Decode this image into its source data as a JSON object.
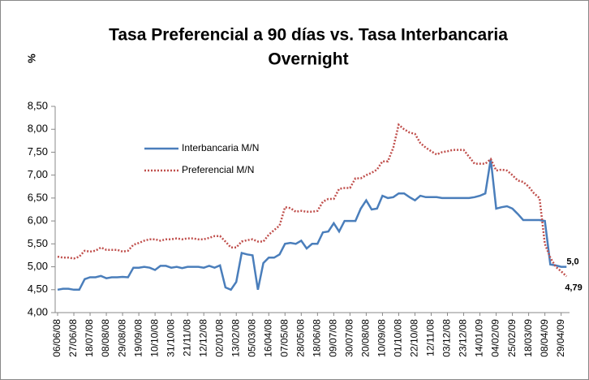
{
  "chart_data": {
    "type": "line",
    "title": "Tasa Preferencial a 90 días vs. Tasa Interbancaria",
    "subtitle": "Overnight",
    "y_label": "%",
    "legend": "left",
    "ylim": [
      4.0,
      8.5
    ],
    "yticks": [
      {
        "value": 4.0,
        "label": "4,00"
      },
      {
        "value": 4.5,
        "label": "4,50"
      },
      {
        "value": 5.0,
        "label": "5,00"
      },
      {
        "value": 5.5,
        "label": "5,50"
      },
      {
        "value": 6.0,
        "label": "6,00"
      },
      {
        "value": 6.5,
        "label": "6,50"
      },
      {
        "value": 7.0,
        "label": "7,00"
      },
      {
        "value": 7.5,
        "label": "7,50"
      },
      {
        "value": 8.0,
        "label": "8,00"
      },
      {
        "value": 8.5,
        "label": "8,50"
      }
    ],
    "categories": [
      "06/06/08",
      null,
      null,
      "27/06/08",
      null,
      null,
      "18/07/08",
      null,
      null,
      "08/08/08",
      null,
      null,
      "29/08/08",
      null,
      null,
      "19/09/08",
      null,
      null,
      "10/10/08",
      null,
      null,
      "31/10/08",
      null,
      null,
      "21/11/08",
      null,
      null,
      "12/12/08",
      null,
      null,
      "02/01/08",
      null,
      null,
      "13/02/08",
      null,
      null,
      "05/03/08",
      null,
      null,
      "16/04/08",
      null,
      null,
      "07/05/08",
      null,
      null,
      "28/05/08",
      null,
      null,
      "18/06/08",
      null,
      null,
      "09/07/08",
      null,
      null,
      "30/07/08",
      null,
      null,
      "20/08/08",
      null,
      null,
      "10/09/08",
      null,
      null,
      "01/10/08",
      null,
      null,
      "22/10/08",
      null,
      null,
      "12/11/08",
      null,
      null,
      "03/12/08",
      null,
      null,
      "23/12/08",
      null,
      null,
      "14/01/09",
      null,
      null,
      "04/02/09",
      null,
      null,
      "25/02/09",
      null,
      null,
      "18/03/09",
      null,
      null,
      "08/04/09",
      null,
      null,
      "29/04/09",
      null
    ],
    "series": [
      {
        "name": "Interbancaria M/N",
        "color": "#4a7ebb",
        "style": "solid",
        "values": [
          4.5,
          4.52,
          4.52,
          4.5,
          4.5,
          4.73,
          4.77,
          4.77,
          4.8,
          4.75,
          4.77,
          4.77,
          4.78,
          4.77,
          4.98,
          4.98,
          5.0,
          4.98,
          4.93,
          5.02,
          5.02,
          4.98,
          5.0,
          4.97,
          5.0,
          5.0,
          5.0,
          4.98,
          5.02,
          4.98,
          5.03,
          4.55,
          4.5,
          4.67,
          5.3,
          5.27,
          5.25,
          4.5,
          5.08,
          5.2,
          5.2,
          5.27,
          5.5,
          5.52,
          5.5,
          5.57,
          5.4,
          5.5,
          5.5,
          5.75,
          5.77,
          5.95,
          5.77,
          6.0,
          6.0,
          6.0,
          6.27,
          6.45,
          6.25,
          6.27,
          6.55,
          6.5,
          6.52,
          6.6,
          6.6,
          6.52,
          6.45,
          6.55,
          6.52,
          6.52,
          6.52,
          6.5,
          6.5,
          6.5,
          6.5,
          6.5,
          6.5,
          6.52,
          6.55,
          6.6,
          7.35,
          6.27,
          6.3,
          6.32,
          6.27,
          6.15,
          6.02,
          6.02,
          6.02,
          6.02,
          6.0,
          5.05,
          5.03,
          5.0,
          5.0
        ],
        "value_labels": [
          null,
          null,
          null,
          null,
          null,
          null,
          null,
          null,
          null,
          null,
          null,
          null,
          null,
          null,
          null,
          null,
          null,
          null,
          null,
          null,
          null,
          null,
          null,
          null,
          null,
          null,
          null,
          null,
          null,
          null,
          null,
          null,
          null,
          null,
          null,
          null,
          null,
          null,
          null,
          null,
          null,
          null,
          null,
          null,
          null,
          null,
          null,
          null,
          null,
          null,
          null,
          null,
          null,
          null,
          null,
          null,
          null,
          null,
          null,
          null,
          null,
          null,
          null,
          null,
          null,
          null,
          null,
          null,
          null,
          null,
          null,
          null,
          null,
          null,
          null,
          null,
          null,
          null,
          null,
          null,
          null,
          null,
          null,
          null,
          null,
          null,
          null,
          null,
          null,
          null,
          null,
          null,
          null,
          null,
          "5,0"
        ]
      },
      {
        "name": "Preferencial M/N",
        "color": "#c0504d",
        "style": "dotted",
        "values": [
          5.22,
          5.2,
          5.2,
          5.18,
          5.22,
          5.35,
          5.33,
          5.35,
          5.42,
          5.37,
          5.37,
          5.37,
          5.33,
          5.35,
          5.48,
          5.52,
          5.57,
          5.6,
          5.6,
          5.57,
          5.6,
          5.6,
          5.62,
          5.6,
          5.62,
          5.62,
          5.6,
          5.6,
          5.63,
          5.67,
          5.67,
          5.55,
          5.42,
          5.42,
          5.55,
          5.58,
          5.6,
          5.55,
          5.55,
          5.7,
          5.8,
          5.9,
          6.3,
          6.28,
          6.2,
          6.22,
          6.2,
          6.2,
          6.22,
          6.42,
          6.48,
          6.48,
          6.7,
          6.72,
          6.72,
          6.93,
          6.93,
          7.0,
          7.05,
          7.12,
          7.3,
          7.3,
          7.6,
          8.1,
          8.0,
          7.93,
          7.9,
          7.7,
          7.6,
          7.52,
          7.45,
          7.5,
          7.52,
          7.55,
          7.55,
          7.55,
          7.4,
          7.25,
          7.25,
          7.25,
          7.35,
          7.1,
          7.12,
          7.1,
          7.0,
          6.88,
          6.85,
          6.75,
          6.6,
          6.5,
          5.5,
          5.2,
          5.0,
          4.9,
          4.79
        ],
        "value_labels": [
          null,
          null,
          null,
          null,
          null,
          null,
          null,
          null,
          null,
          null,
          null,
          null,
          null,
          null,
          null,
          null,
          null,
          null,
          null,
          null,
          null,
          null,
          null,
          null,
          null,
          null,
          null,
          null,
          null,
          null,
          null,
          null,
          null,
          null,
          null,
          null,
          null,
          null,
          null,
          null,
          null,
          null,
          null,
          null,
          null,
          null,
          null,
          null,
          null,
          null,
          null,
          null,
          null,
          null,
          null,
          null,
          null,
          null,
          null,
          null,
          null,
          null,
          null,
          null,
          null,
          null,
          null,
          null,
          null,
          null,
          null,
          null,
          null,
          null,
          null,
          null,
          null,
          null,
          null,
          null,
          null,
          null,
          null,
          null,
          null,
          null,
          null,
          null,
          null,
          null,
          null,
          null,
          null,
          null,
          "4,79"
        ]
      }
    ]
  }
}
